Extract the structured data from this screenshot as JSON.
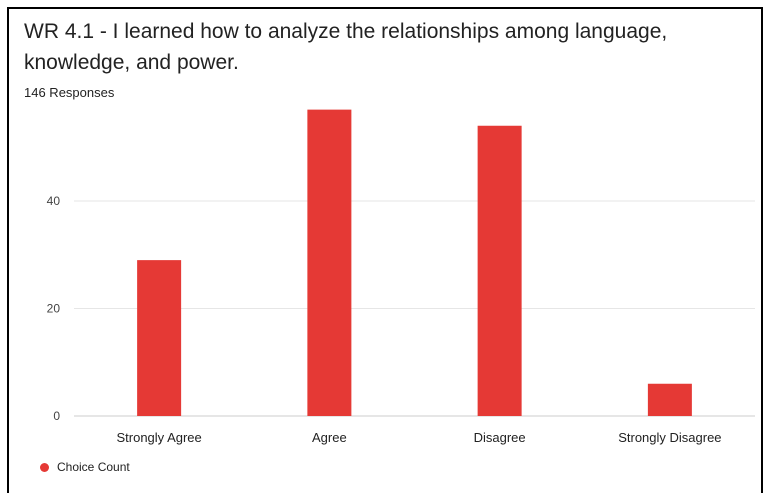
{
  "header": {
    "title": "WR 4.1 - I learned how to analyze the relationships among language, knowledge, and power.",
    "responses": "146 Responses"
  },
  "legend": {
    "label": "Choice Count",
    "color": "#e53935"
  },
  "chart_data": {
    "type": "bar",
    "title": "WR 4.1 - I learned how to analyze the relationships among language, knowledge, and power.",
    "subtitle": "146 Responses",
    "categories": [
      "Strongly Agree",
      "Agree",
      "Disagree",
      "Strongly Disagree"
    ],
    "series": [
      {
        "name": "Choice Count",
        "values": [
          29,
          57,
          54,
          6
        ],
        "color": "#e53935"
      }
    ],
    "xlabel": "",
    "ylabel": "",
    "ylim": [
      0,
      60
    ],
    "yticks": [
      0,
      20,
      40
    ],
    "grid": true,
    "legend_position": "bottom-left"
  }
}
